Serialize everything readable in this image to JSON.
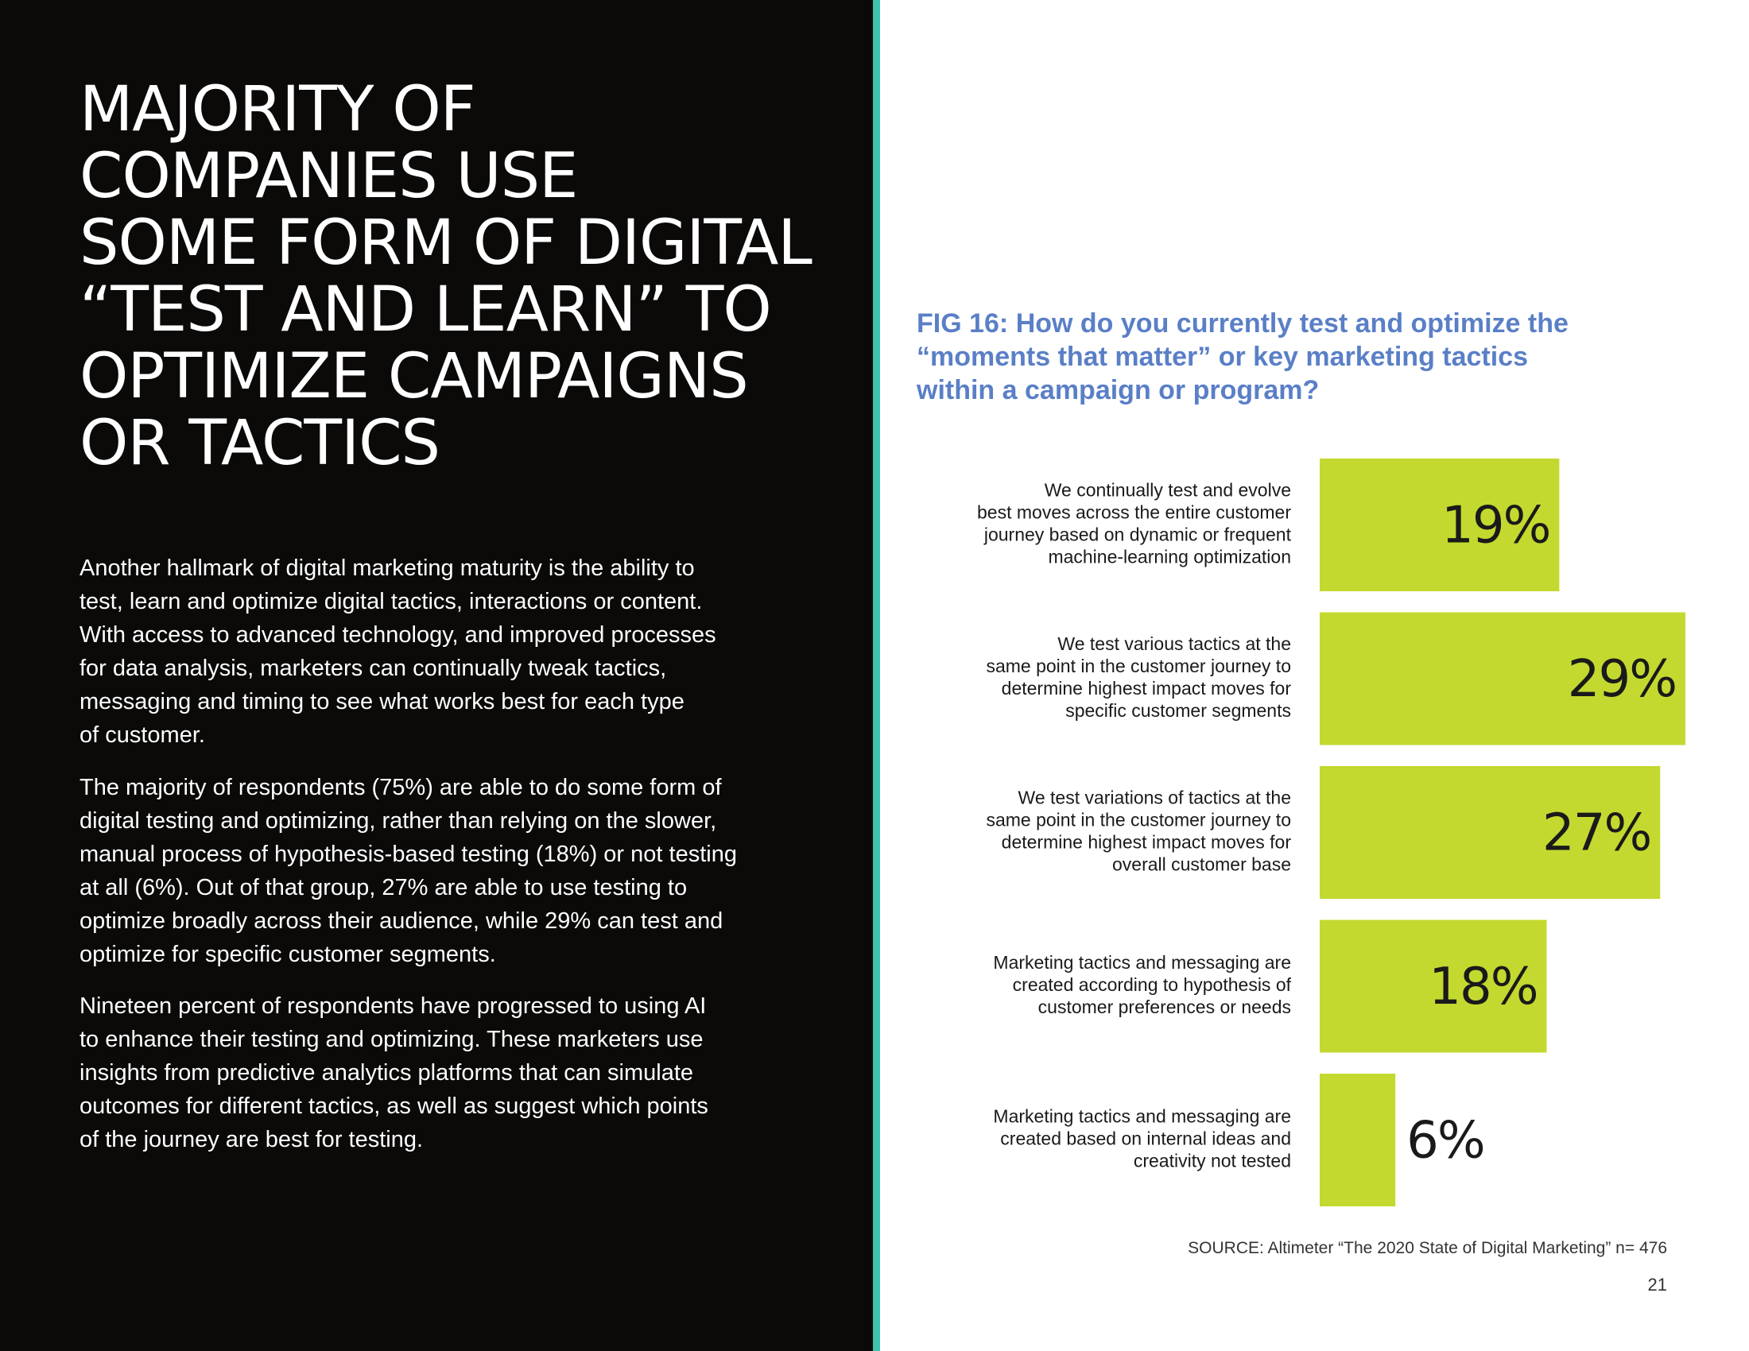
{
  "page": {
    "headline": [
      "MAJORITY OF",
      "COMPANIES USE",
      "SOME FORM OF DIGITAL",
      "“TEST AND LEARN” TO",
      "OPTIMIZE CAMPAIGNS",
      "OR TACTICS"
    ],
    "paragraphs": [
      [
        "Another hallmark of digital marketing maturity is the ability to",
        "test, learn and optimize digital tactics, interactions or content.",
        "With access to advanced technology, and improved  processes",
        "for data analysis, marketers can continually tweak tactics,",
        "messaging and timing to see what works best for each type",
        "of customer."
      ],
      [
        "The majority of respondents (75%) are able to do some form of",
        "digital testing and optimizing, rather than relying on the slower,",
        "manual process of hypothesis-based testing (18%) or not testing",
        "at all (6%). Out of that group, 27% are able to use testing to",
        "optimize broadly across their audience, while 29% can test and",
        "optimize for specific customer segments."
      ],
      [
        "Nineteen percent of respondents have progressed to using AI",
        "to enhance their testing and optimizing. These marketers use",
        "insights from predictive analytics platforms that can simulate",
        "outcomes for different tactics, as well as suggest which points",
        "of the journey are best for testing."
      ]
    ],
    "source": "SOURCE: Altimeter “The 2020 State of Digital Marketing” n= 476",
    "page_number": "21"
  },
  "colors": {
    "left_background": "#0b0a09",
    "divider": "#3cc4b0",
    "figure_title": "#5a7fc7",
    "bar": "#c3d92f"
  },
  "chart_data": {
    "type": "bar",
    "orientation": "horizontal",
    "title": [
      "FIG 16: How do you currently test and optimize the",
      "“moments that matter” or key marketing tactics",
      "within a campaign or program?"
    ],
    "categories": [
      [
        "We continually test and evolve",
        "best moves across the entire customer",
        "journey based on dynamic or frequent",
        "machine-learning optimization"
      ],
      [
        "We test various tactics at the",
        "same point in the customer journey to",
        "determine highest impact moves for",
        "specific customer segments"
      ],
      [
        "We test variations of tactics at the",
        "same point in the customer journey to",
        "determine highest impact moves for",
        "overall customer base"
      ],
      [
        "Marketing tactics and messaging are",
        "created according to hypothesis of",
        "customer preferences or needs"
      ],
      [
        "Marketing tactics and messaging are",
        "created based on internal ideas and",
        "creativity not tested"
      ]
    ],
    "values": [
      19,
      29,
      27,
      18,
      6
    ],
    "value_labels": [
      "19%",
      "29%",
      "27%",
      "18%",
      "6%"
    ],
    "unit": "%",
    "xlim": [
      0,
      29
    ],
    "xlabel": "",
    "ylabel": "",
    "grid": false,
    "legend": "none"
  }
}
